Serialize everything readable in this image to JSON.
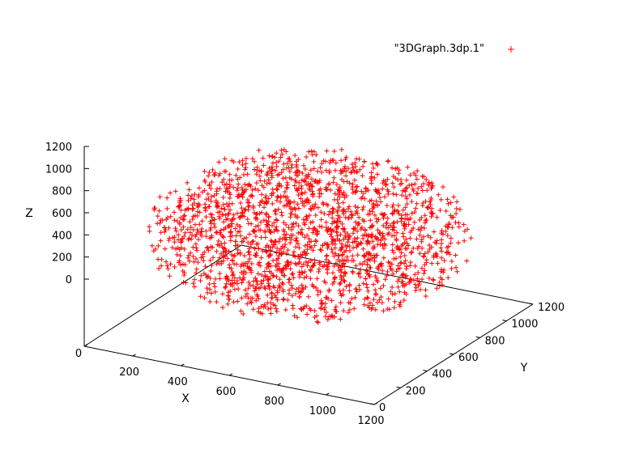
{
  "chart_data": {
    "type": "scatter3d",
    "legend": "\"3DGraph.3dp.1\"",
    "legend_placement": "top-right",
    "marker": "plus",
    "color": "#ff0000",
    "xlabel": "X",
    "ylabel": "Y",
    "zlabel": "Z",
    "xlim": [
      0,
      1200
    ],
    "ylim": [
      0,
      1200
    ],
    "zlim": [
      0,
      1200
    ],
    "x_ticks": [
      "0",
      "200",
      "400",
      "600",
      "800",
      "1000",
      "1200"
    ],
    "y_ticks": [
      "0",
      "200",
      "400",
      "600",
      "800",
      "1000",
      "1200"
    ],
    "z_ticks": [
      "0",
      "200",
      "400",
      "600",
      "800",
      "1000",
      "1200"
    ],
    "point_count": 2000,
    "distribution": "points filling a sphere",
    "center": [
      600,
      600,
      600
    ],
    "radius": 600,
    "grid": false
  }
}
